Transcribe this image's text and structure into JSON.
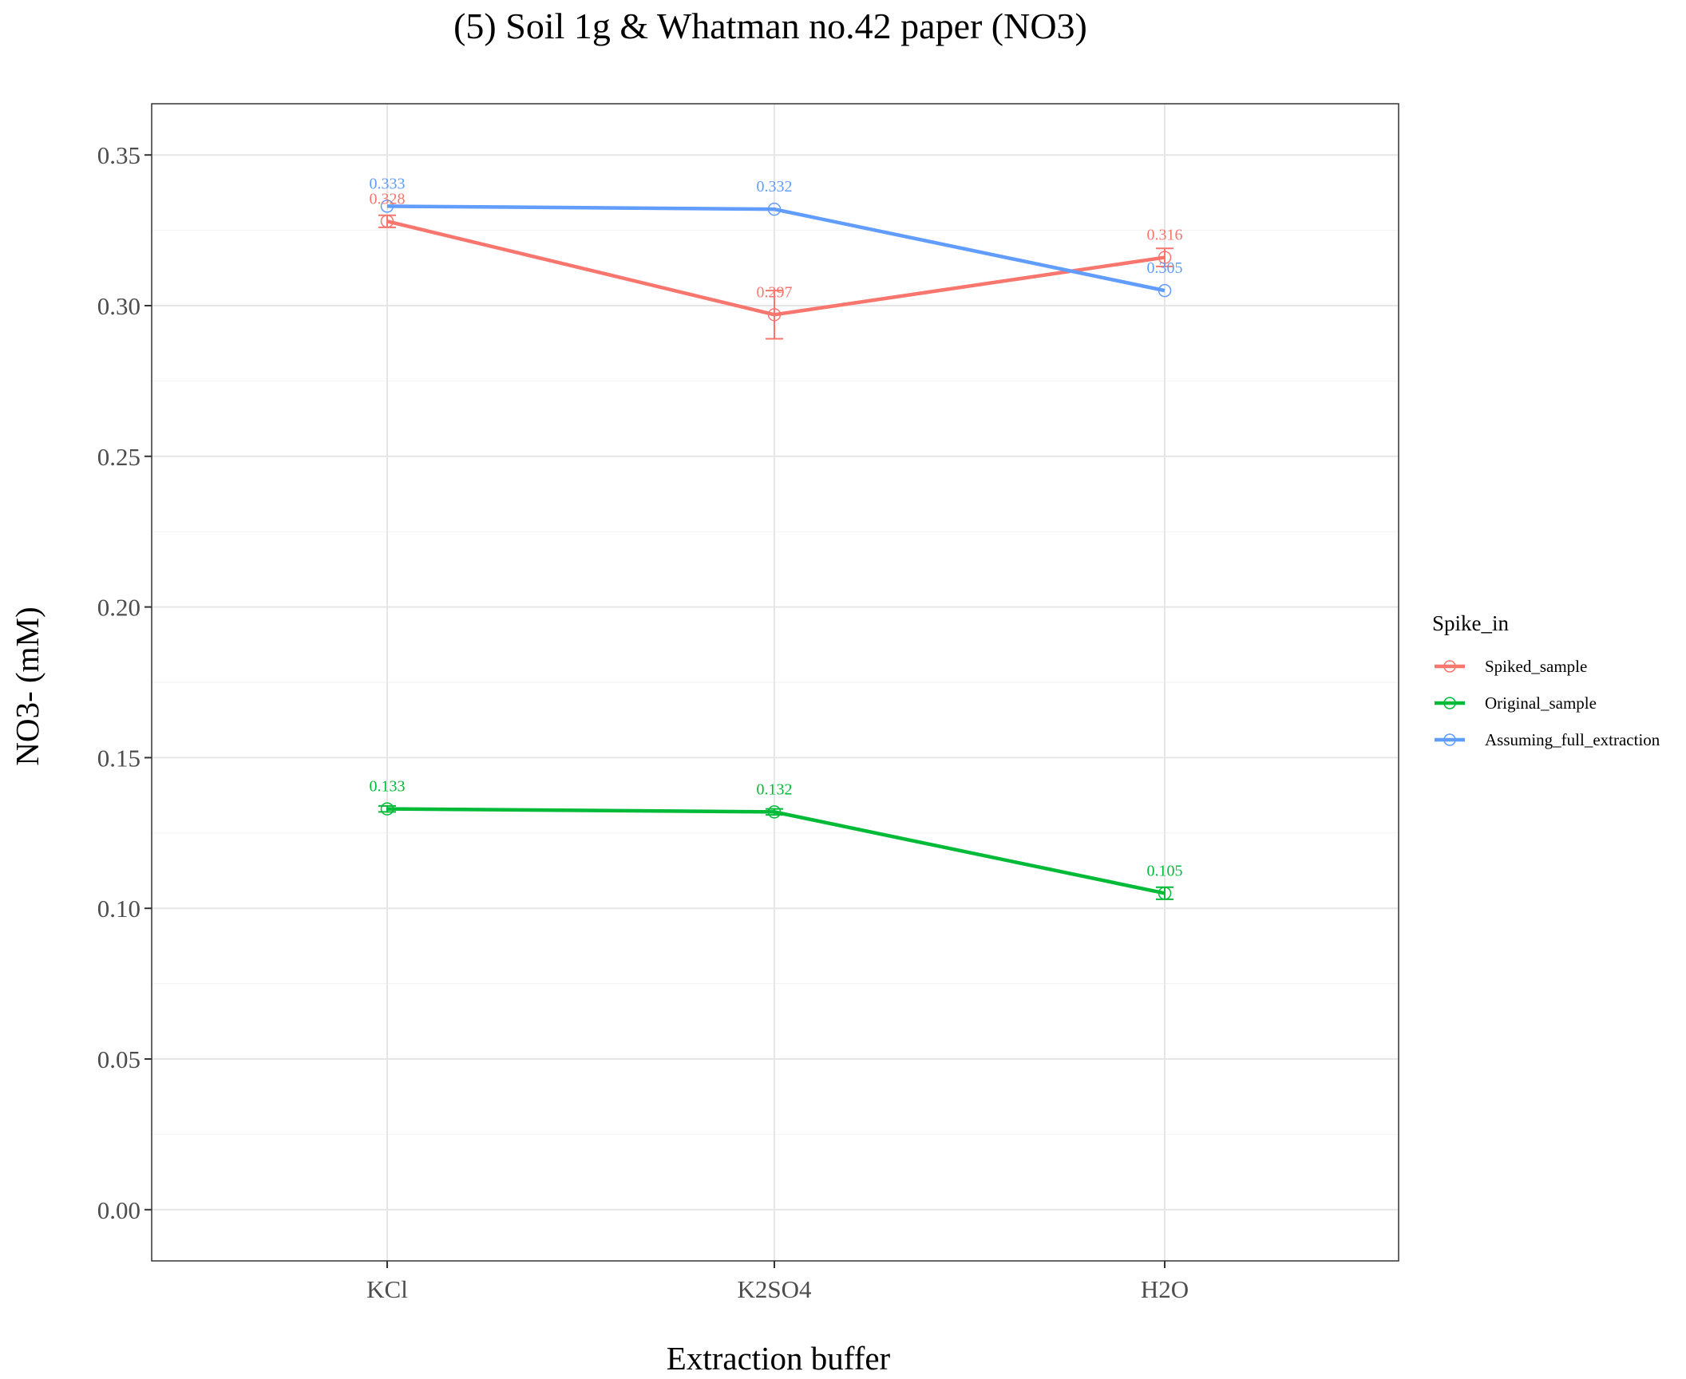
{
  "chart_data": {
    "type": "line",
    "title": "(5) Soil 1g & Whatman no.42 paper (NO3)",
    "xlabel": "Extraction buffer",
    "ylabel": "NO3- (mM)",
    "categories": [
      "KCl",
      "K2SO4",
      "H2O"
    ],
    "ylim": [
      -0.017,
      0.367
    ],
    "yticks": [
      0.0,
      0.05,
      0.1,
      0.15,
      0.2,
      0.25,
      0.3,
      0.35
    ],
    "ytick_labels": [
      "0.00",
      "0.05",
      "0.10",
      "0.15",
      "0.20",
      "0.25",
      "0.30",
      "0.35"
    ],
    "grid": true,
    "legend": {
      "title": "Spike_in",
      "position": "right"
    },
    "series": [
      {
        "name": "Spiked_sample",
        "color": "#F8766D",
        "values": [
          0.328,
          0.297,
          0.316
        ],
        "errors": [
          0.002,
          0.008,
          0.003
        ],
        "labels": [
          "0.328",
          "0.297",
          "0.316"
        ]
      },
      {
        "name": "Original_sample",
        "color": "#00BA38",
        "values": [
          0.133,
          0.132,
          0.105
        ],
        "errors": [
          0.001,
          0.001,
          0.002
        ],
        "labels": [
          "0.133",
          "0.132",
          "0.105"
        ]
      },
      {
        "name": "Assuming_full_extraction",
        "color": "#619CFF",
        "values": [
          0.333,
          0.332,
          0.305
        ],
        "errors": [
          0,
          0,
          0
        ],
        "labels": [
          "0.333",
          "0.332",
          "0.305"
        ]
      }
    ]
  }
}
